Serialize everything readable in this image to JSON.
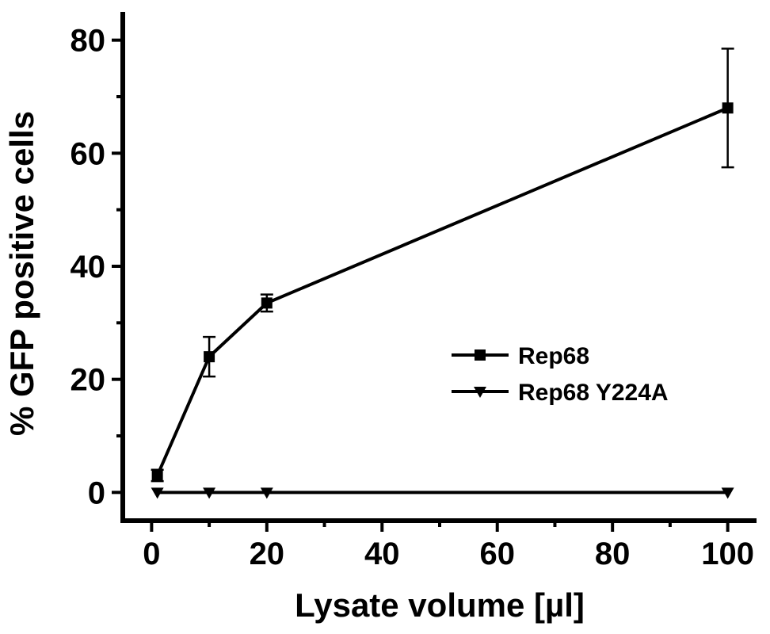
{
  "chart_data": {
    "type": "line",
    "xlabel": "Lysate volume [µl]",
    "ylabel": "% GFP positive cells",
    "xlim": [
      -5,
      105
    ],
    "ylim": [
      -5,
      85
    ],
    "xticks": [
      0,
      20,
      40,
      60,
      80,
      100
    ],
    "yticks": [
      0,
      20,
      40,
      60,
      80
    ],
    "grid": false,
    "legend_position": "right-middle",
    "series": [
      {
        "name": "Rep68",
        "marker": "square",
        "color": "#000000",
        "x": [
          1,
          10,
          20,
          100
        ],
        "y": [
          3,
          24,
          33.5,
          68
        ],
        "error": [
          1,
          3.5,
          1.5,
          10.5
        ]
      },
      {
        "name": "Rep68 Y224A",
        "marker": "triangle-down",
        "color": "#000000",
        "x": [
          1,
          10,
          20,
          100
        ],
        "y": [
          0,
          0,
          0,
          0
        ],
        "error": [
          0,
          0,
          0,
          0
        ]
      }
    ]
  }
}
